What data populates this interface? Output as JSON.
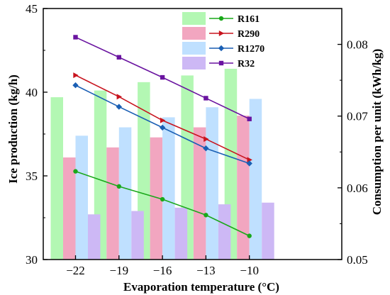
{
  "chart_data": {
    "type": "bar+line",
    "xlabel": "Evaporation temperature (°C)",
    "ylabel_left": "Ice production (kg/h)",
    "ylabel_right": "Consumption per unit (kWh/kg)",
    "categories": [
      "−22",
      "−19",
      "−16",
      "−13",
      "−10"
    ],
    "ylim_left": [
      30,
      45
    ],
    "yticks_left": [
      30,
      35,
      40,
      45
    ],
    "ylim_right": [
      0.05,
      0.085
    ],
    "yticks_right": [
      "0.05",
      "0.06",
      "0.07",
      "0.08"
    ],
    "grid": false,
    "legend_position": "top-center",
    "series": [
      {
        "name": "R161",
        "bar_color": "#b3f7b3",
        "line_color": "#1aa81a",
        "marker": "circle",
        "bar_values": [
          39.7,
          40.1,
          40.6,
          41.0,
          41.4
        ],
        "line_values": [
          0.0623,
          0.0602,
          0.0584,
          0.0562,
          0.0533
        ]
      },
      {
        "name": "R290",
        "bar_color": "#f2a6c0",
        "line_color": "#c8141e",
        "marker": "triangle-right",
        "bar_values": [
          36.1,
          36.7,
          37.3,
          37.9,
          38.6
        ],
        "line_values": [
          0.0757,
          0.0727,
          0.0694,
          0.0668,
          0.0639
        ]
      },
      {
        "name": "R1270",
        "bar_color": "#bfe0ff",
        "line_color": "#1a5fb4",
        "marker": "diamond",
        "bar_values": [
          37.4,
          37.9,
          38.5,
          39.1,
          39.6
        ],
        "line_values": [
          0.0743,
          0.0713,
          0.0684,
          0.0655,
          0.0634
        ]
      },
      {
        "name": "R32",
        "bar_color": "#cdb8f5",
        "line_color": "#6a14a0",
        "marker": "square",
        "bar_values": [
          32.7,
          32.9,
          33.1,
          33.3,
          33.4
        ],
        "line_values": [
          0.081,
          0.0782,
          0.0754,
          0.0725,
          0.0696
        ]
      }
    ]
  }
}
